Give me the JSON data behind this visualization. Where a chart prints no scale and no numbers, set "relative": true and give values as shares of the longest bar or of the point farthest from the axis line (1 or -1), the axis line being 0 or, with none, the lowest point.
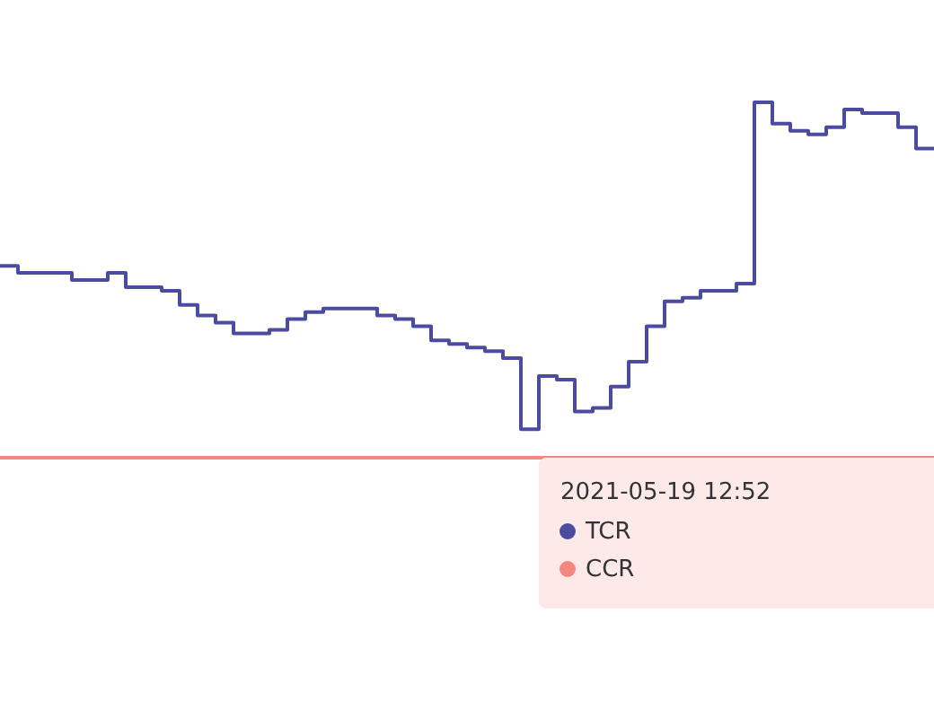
{
  "chart_data": {
    "type": "step",
    "relative": true,
    "legend": "bottom right",
    "legend_title": "2021-05-19 12:52",
    "categories": [
      null,
      null,
      null,
      null,
      null,
      null,
      null,
      null,
      null,
      null,
      null,
      null,
      null,
      null,
      null,
      null,
      null,
      null,
      null,
      null,
      null,
      null,
      null,
      null,
      null,
      null,
      null,
      null,
      null,
      null,
      null,
      null,
      null,
      null,
      null,
      null,
      null,
      null,
      null,
      null,
      null,
      null,
      null,
      null,
      null,
      null,
      null,
      null,
      null,
      null,
      null,
      null,
      null
    ],
    "series": [
      {
        "name": "TCR",
        "color": "#4b4ba0",
        "values": [
          0.54,
          0.52,
          0.52,
          0.52,
          0.5,
          0.5,
          0.52,
          0.48,
          0.48,
          0.47,
          0.43,
          0.4,
          0.38,
          0.35,
          0.35,
          0.36,
          0.39,
          0.41,
          0.42,
          0.42,
          0.42,
          0.4,
          0.39,
          0.37,
          0.33,
          0.32,
          0.31,
          0.3,
          0.28,
          0.08,
          0.23,
          0.22,
          0.13,
          0.14,
          0.2,
          0.27,
          0.37,
          0.44,
          0.45,
          0.47,
          0.47,
          0.49,
          1,
          0.94,
          0.92,
          0.91,
          0.93,
          0.98,
          0.97,
          0.97,
          0.93,
          0.87,
          0.87
        ]
      },
      {
        "name": "CCR",
        "color": "#f4877f",
        "values": [
          0,
          0,
          0,
          0,
          0,
          0,
          0,
          0,
          0,
          0,
          0,
          0,
          0,
          0,
          0,
          0,
          0,
          0,
          0,
          0,
          0,
          0,
          0,
          0,
          0,
          0,
          0,
          0,
          0,
          0,
          0,
          0,
          0,
          0,
          0,
          0,
          0,
          0,
          0,
          0,
          0,
          0,
          0,
          0,
          0,
          0,
          0,
          0,
          0,
          0,
          0,
          0,
          0
        ]
      }
    ]
  }
}
